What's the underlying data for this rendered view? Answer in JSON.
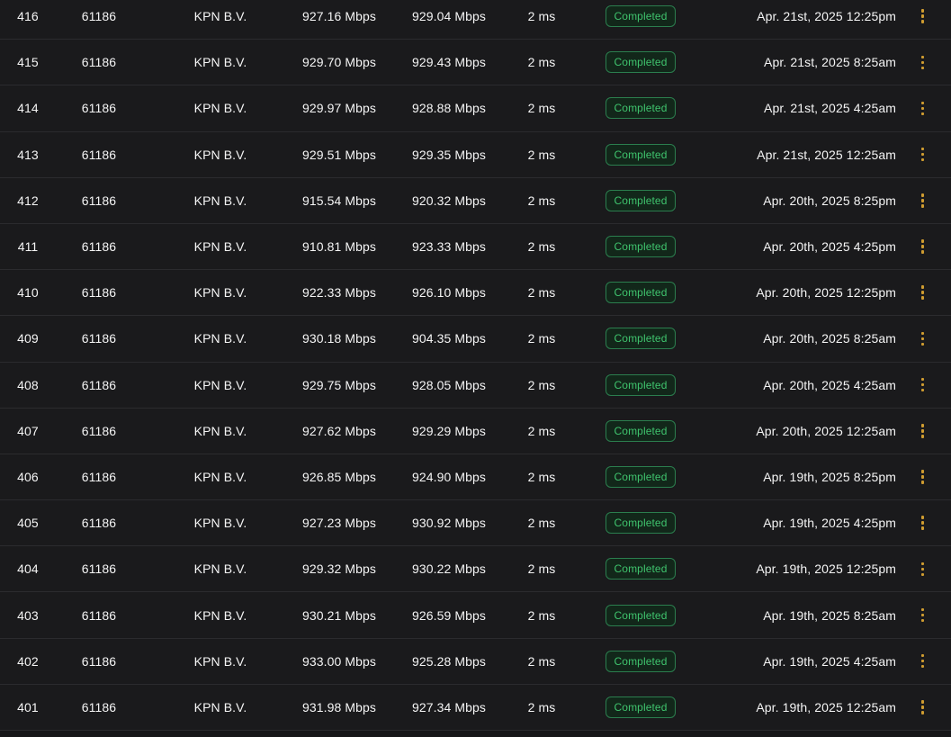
{
  "colors": {
    "row_bg": "#1a1a1c",
    "divider": "#2b2b2e",
    "text": "#f5f5f5",
    "badge_text": "#3fc36d",
    "badge_border": "#2b7e4e",
    "badge_bg": "#12271a",
    "dots": "#cf9c30",
    "footer_bg": "#161618"
  },
  "icons": {
    "row_actions": "vertical-dots-icon"
  },
  "table": {
    "columns": [
      "id",
      "asn",
      "isp",
      "download",
      "upload",
      "ping",
      "status",
      "date",
      "actions"
    ],
    "rows": [
      {
        "id": "416",
        "asn": "61186",
        "isp": "KPN B.V.",
        "download": "927.16 Mbps",
        "upload": "929.04 Mbps",
        "ping": "2 ms",
        "status": "Completed",
        "date": "Apr. 21st, 2025 12:25pm"
      },
      {
        "id": "415",
        "asn": "61186",
        "isp": "KPN B.V.",
        "download": "929.70 Mbps",
        "upload": "929.43 Mbps",
        "ping": "2 ms",
        "status": "Completed",
        "date": "Apr. 21st, 2025 8:25am"
      },
      {
        "id": "414",
        "asn": "61186",
        "isp": "KPN B.V.",
        "download": "929.97 Mbps",
        "upload": "928.88 Mbps",
        "ping": "2 ms",
        "status": "Completed",
        "date": "Apr. 21st, 2025 4:25am"
      },
      {
        "id": "413",
        "asn": "61186",
        "isp": "KPN B.V.",
        "download": "929.51 Mbps",
        "upload": "929.35 Mbps",
        "ping": "2 ms",
        "status": "Completed",
        "date": "Apr. 21st, 2025 12:25am"
      },
      {
        "id": "412",
        "asn": "61186",
        "isp": "KPN B.V.",
        "download": "915.54 Mbps",
        "upload": "920.32 Mbps",
        "ping": "2 ms",
        "status": "Completed",
        "date": "Apr. 20th, 2025 8:25pm"
      },
      {
        "id": "411",
        "asn": "61186",
        "isp": "KPN B.V.",
        "download": "910.81 Mbps",
        "upload": "923.33 Mbps",
        "ping": "2 ms",
        "status": "Completed",
        "date": "Apr. 20th, 2025 4:25pm"
      },
      {
        "id": "410",
        "asn": "61186",
        "isp": "KPN B.V.",
        "download": "922.33 Mbps",
        "upload": "926.10 Mbps",
        "ping": "2 ms",
        "status": "Completed",
        "date": "Apr. 20th, 2025 12:25pm"
      },
      {
        "id": "409",
        "asn": "61186",
        "isp": "KPN B.V.",
        "download": "930.18 Mbps",
        "upload": "904.35 Mbps",
        "ping": "2 ms",
        "status": "Completed",
        "date": "Apr. 20th, 2025 8:25am"
      },
      {
        "id": "408",
        "asn": "61186",
        "isp": "KPN B.V.",
        "download": "929.75 Mbps",
        "upload": "928.05 Mbps",
        "ping": "2 ms",
        "status": "Completed",
        "date": "Apr. 20th, 2025 4:25am"
      },
      {
        "id": "407",
        "asn": "61186",
        "isp": "KPN B.V.",
        "download": "927.62 Mbps",
        "upload": "929.29 Mbps",
        "ping": "2 ms",
        "status": "Completed",
        "date": "Apr. 20th, 2025 12:25am"
      },
      {
        "id": "406",
        "asn": "61186",
        "isp": "KPN B.V.",
        "download": "926.85 Mbps",
        "upload": "924.90 Mbps",
        "ping": "2 ms",
        "status": "Completed",
        "date": "Apr. 19th, 2025 8:25pm"
      },
      {
        "id": "405",
        "asn": "61186",
        "isp": "KPN B.V.",
        "download": "927.23 Mbps",
        "upload": "930.92 Mbps",
        "ping": "2 ms",
        "status": "Completed",
        "date": "Apr. 19th, 2025 4:25pm"
      },
      {
        "id": "404",
        "asn": "61186",
        "isp": "KPN B.V.",
        "download": "929.32 Mbps",
        "upload": "930.22 Mbps",
        "ping": "2 ms",
        "status": "Completed",
        "date": "Apr. 19th, 2025 12:25pm"
      },
      {
        "id": "403",
        "asn": "61186",
        "isp": "KPN B.V.",
        "download": "930.21 Mbps",
        "upload": "926.59 Mbps",
        "ping": "2 ms",
        "status": "Completed",
        "date": "Apr. 19th, 2025 8:25am"
      },
      {
        "id": "402",
        "asn": "61186",
        "isp": "KPN B.V.",
        "download": "933.00 Mbps",
        "upload": "925.28 Mbps",
        "ping": "2 ms",
        "status": "Completed",
        "date": "Apr. 19th, 2025 4:25am"
      },
      {
        "id": "401",
        "asn": "61186",
        "isp": "KPN B.V.",
        "download": "931.98 Mbps",
        "upload": "927.34 Mbps",
        "ping": "2 ms",
        "status": "Completed",
        "date": "Apr. 19th, 2025 12:25am"
      }
    ]
  }
}
